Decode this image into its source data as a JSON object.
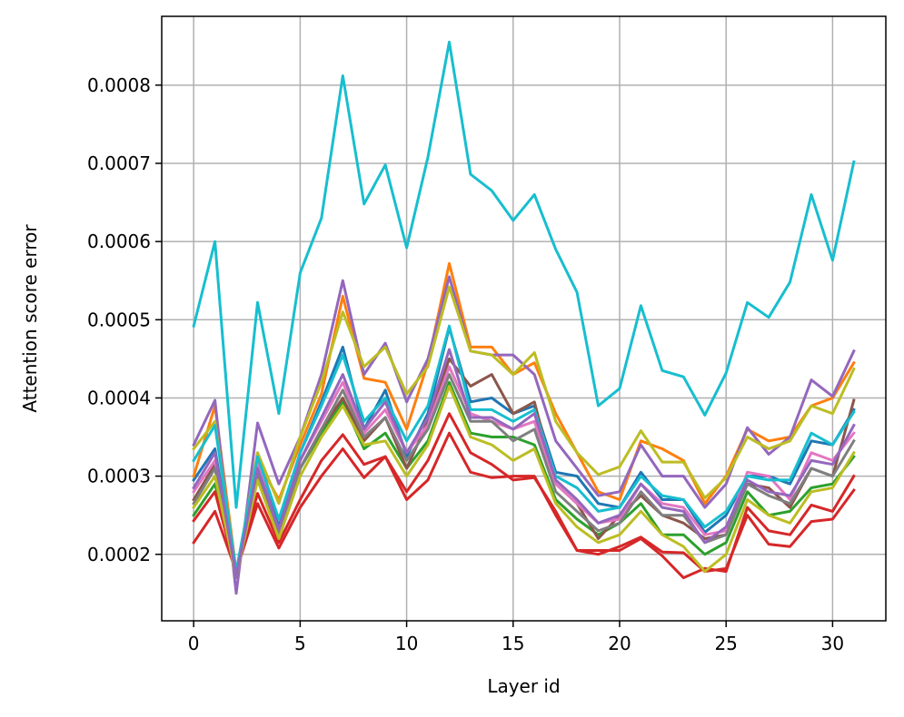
{
  "chart_data": {
    "type": "line",
    "title": "",
    "xlabel": "Layer id",
    "ylabel": "Attention score error",
    "xlim": [
      -1.5,
      32.5
    ],
    "ylim": [
      0.000115,
      0.000888
    ],
    "grid": true,
    "legend": "none",
    "x_ticks": [
      0,
      5,
      10,
      15,
      20,
      25,
      30
    ],
    "x_tick_labels": [
      "0",
      "5",
      "10",
      "15",
      "20",
      "25",
      "30"
    ],
    "y_ticks": [
      0.0002,
      0.0003,
      0.0004,
      0.0005,
      0.0006,
      0.0007,
      0.0008
    ],
    "y_tick_labels": [
      "0.0002",
      "0.0003",
      "0.0004",
      "0.0005",
      "0.0006",
      "0.0007",
      "0.0008"
    ],
    "x": [
      0,
      1,
      2,
      3,
      4,
      5,
      6,
      7,
      8,
      9,
      10,
      11,
      12,
      13,
      14,
      15,
      16,
      17,
      18,
      19,
      20,
      21,
      22,
      23,
      24,
      25,
      26,
      27,
      28,
      29,
      30,
      31
    ],
    "series": [
      {
        "color": "#1f77b4",
        "values": [
          0.000295,
          0.000335,
          0.000172,
          0.00033,
          0.000235,
          0.00033,
          0.000395,
          0.000465,
          0.00036,
          0.00041,
          0.000325,
          0.00038,
          0.00049,
          0.000395,
          0.0004,
          0.00038,
          0.00039,
          0.000305,
          0.0003,
          0.000265,
          0.00026,
          0.000305,
          0.00027,
          0.00027,
          0.000228,
          0.00025,
          0.0003,
          0.0003,
          0.00029,
          0.000345,
          0.00034,
          0.000385
        ]
      },
      {
        "color": "#ff7f0e",
        "values": [
          0.0003,
          0.00039,
          0.000178,
          0.00032,
          0.00027,
          0.00034,
          0.000405,
          0.00053,
          0.000425,
          0.00042,
          0.00036,
          0.000445,
          0.000572,
          0.000465,
          0.000465,
          0.00043,
          0.000445,
          0.00038,
          0.00033,
          0.00028,
          0.00027,
          0.000345,
          0.000335,
          0.00032,
          0.000265,
          0.0003,
          0.00036,
          0.000345,
          0.00035,
          0.00039,
          0.0004,
          0.000445
        ]
      },
      {
        "color": "#2ca02c",
        "values": [
          0.00025,
          0.00029,
          0.000178,
          0.0003,
          0.00023,
          0.00031,
          0.000355,
          0.000395,
          0.000335,
          0.000355,
          0.00031,
          0.000345,
          0.00042,
          0.000355,
          0.00035,
          0.00035,
          0.00034,
          0.00027,
          0.000245,
          0.000225,
          0.00024,
          0.000265,
          0.000225,
          0.000225,
          0.0002,
          0.000215,
          0.00028,
          0.00025,
          0.000255,
          0.000285,
          0.00029,
          0.000325
        ]
      },
      {
        "color": "#d62728",
        "values": [
          0.000215,
          0.000255,
          0.000178,
          0.000265,
          0.000208,
          0.00026,
          0.0003,
          0.000335,
          0.000298,
          0.000325,
          0.00027,
          0.000295,
          0.000355,
          0.000305,
          0.000298,
          0.0003,
          0.0003,
          0.00025,
          0.000205,
          0.0002,
          0.00021,
          0.000222,
          0.000203,
          0.000202,
          0.000178,
          0.000182,
          0.00025,
          0.000213,
          0.00021,
          0.000242,
          0.000245,
          0.000282
        ]
      },
      {
        "color": "#d62728",
        "values": [
          0.000243,
          0.00028,
          0.000178,
          0.000278,
          0.000215,
          0.00027,
          0.00032,
          0.000353,
          0.000315,
          0.000325,
          0.00028,
          0.00032,
          0.00038,
          0.00033,
          0.000315,
          0.000295,
          0.000298,
          0.000255,
          0.000205,
          0.000205,
          0.000205,
          0.00022,
          0.000198,
          0.00017,
          0.000182,
          0.000178,
          0.00026,
          0.00023,
          0.000225,
          0.000263,
          0.000255,
          0.0003
        ]
      },
      {
        "color": "#9467bd",
        "values": [
          0.00034,
          0.000397,
          0.00015,
          0.000368,
          0.00029,
          0.00035,
          0.00043,
          0.00055,
          0.00043,
          0.00047,
          0.000395,
          0.00045,
          0.000555,
          0.00046,
          0.000455,
          0.000455,
          0.00043,
          0.000345,
          0.00031,
          0.000275,
          0.00028,
          0.00034,
          0.0003,
          0.0003,
          0.00026,
          0.00029,
          0.000362,
          0.000328,
          0.00035,
          0.000423,
          0.000402,
          0.00046
        ]
      },
      {
        "color": "#8c564b",
        "values": [
          0.00027,
          0.000315,
          0.000178,
          0.000305,
          0.000225,
          0.00031,
          0.00036,
          0.0004,
          0.000345,
          0.000375,
          0.00031,
          0.00037,
          0.00045,
          0.000415,
          0.00043,
          0.00038,
          0.000395,
          0.00029,
          0.000265,
          0.00022,
          0.00025,
          0.000275,
          0.00025,
          0.00024,
          0.00022,
          0.000225,
          0.00029,
          0.000285,
          0.00026,
          0.00031,
          0.0003,
          0.000397
        ]
      },
      {
        "color": "#e377c2",
        "values": [
          0.00028,
          0.00032,
          0.000178,
          0.000315,
          0.00023,
          0.00032,
          0.00037,
          0.00042,
          0.000355,
          0.000385,
          0.00033,
          0.000365,
          0.00044,
          0.00038,
          0.00037,
          0.00036,
          0.00037,
          0.00029,
          0.000265,
          0.00024,
          0.000245,
          0.00029,
          0.000265,
          0.00026,
          0.000225,
          0.00023,
          0.000305,
          0.0003,
          0.00027,
          0.00033,
          0.00032,
          0.000355
        ]
      },
      {
        "color": "#7f7f7f",
        "values": [
          0.000265,
          0.00031,
          0.00017,
          0.000305,
          0.000225,
          0.00031,
          0.00036,
          0.00041,
          0.00035,
          0.000375,
          0.00032,
          0.00036,
          0.00043,
          0.00037,
          0.00037,
          0.000345,
          0.00036,
          0.00028,
          0.000255,
          0.00023,
          0.00024,
          0.00028,
          0.00025,
          0.00025,
          0.000215,
          0.000225,
          0.00029,
          0.000275,
          0.000265,
          0.00031,
          0.0003,
          0.000345
        ]
      },
      {
        "color": "#bcbd22",
        "values": [
          0.000335,
          0.00037,
          0.000175,
          0.00033,
          0.000265,
          0.00035,
          0.00042,
          0.00051,
          0.00044,
          0.000465,
          0.000405,
          0.00044,
          0.000542,
          0.00046,
          0.000455,
          0.00043,
          0.000458,
          0.00037,
          0.00033,
          0.000302,
          0.000312,
          0.000358,
          0.000318,
          0.000318,
          0.000272,
          0.000298,
          0.00035,
          0.000335,
          0.000345,
          0.00039,
          0.00038,
          0.000437
        ]
      },
      {
        "color": "#bcbd22",
        "values": [
          0.00026,
          0.0003,
          0.000172,
          0.000295,
          0.00022,
          0.0003,
          0.00035,
          0.00039,
          0.00034,
          0.000345,
          0.0003,
          0.00034,
          0.000415,
          0.00035,
          0.00034,
          0.00032,
          0.000335,
          0.000265,
          0.000235,
          0.000215,
          0.000225,
          0.000255,
          0.000225,
          0.00021,
          0.000178,
          0.0002,
          0.00027,
          0.00025,
          0.00024,
          0.00028,
          0.000285,
          0.00033
        ]
      },
      {
        "color": "#17becf",
        "values": [
          0.000492,
          0.0006,
          0.00026,
          0.000522,
          0.00038,
          0.00056,
          0.00063,
          0.000812,
          0.000648,
          0.000698,
          0.000592,
          0.000708,
          0.000855,
          0.000686,
          0.000665,
          0.000627,
          0.00066,
          0.00059,
          0.000535,
          0.00039,
          0.000412,
          0.000518,
          0.000435,
          0.000427,
          0.000378,
          0.000432,
          0.000522,
          0.000503,
          0.000548,
          0.00066,
          0.000576,
          0.000702
        ]
      },
      {
        "color": "#17becf",
        "values": [
          0.00032,
          0.000365,
          0.000178,
          0.000325,
          0.000245,
          0.00033,
          0.00039,
          0.000455,
          0.00037,
          0.0004,
          0.000345,
          0.00039,
          0.000492,
          0.000385,
          0.000385,
          0.00037,
          0.000385,
          0.0003,
          0.000285,
          0.000255,
          0.00026,
          0.0003,
          0.000275,
          0.00027,
          0.000235,
          0.000255,
          0.0003,
          0.000295,
          0.000295,
          0.000355,
          0.00034,
          0.000382
        ]
      },
      {
        "color": "#9467bd",
        "values": [
          0.000285,
          0.00033,
          0.000172,
          0.00031,
          0.000232,
          0.00032,
          0.000375,
          0.00043,
          0.00036,
          0.000395,
          0.00033,
          0.000375,
          0.000462,
          0.000375,
          0.000375,
          0.00036,
          0.00038,
          0.000295,
          0.00027,
          0.00024,
          0.00025,
          0.00029,
          0.00026,
          0.000255,
          0.000215,
          0.000235,
          0.000295,
          0.00028,
          0.000275,
          0.00032,
          0.000315,
          0.000365
        ]
      }
    ]
  }
}
